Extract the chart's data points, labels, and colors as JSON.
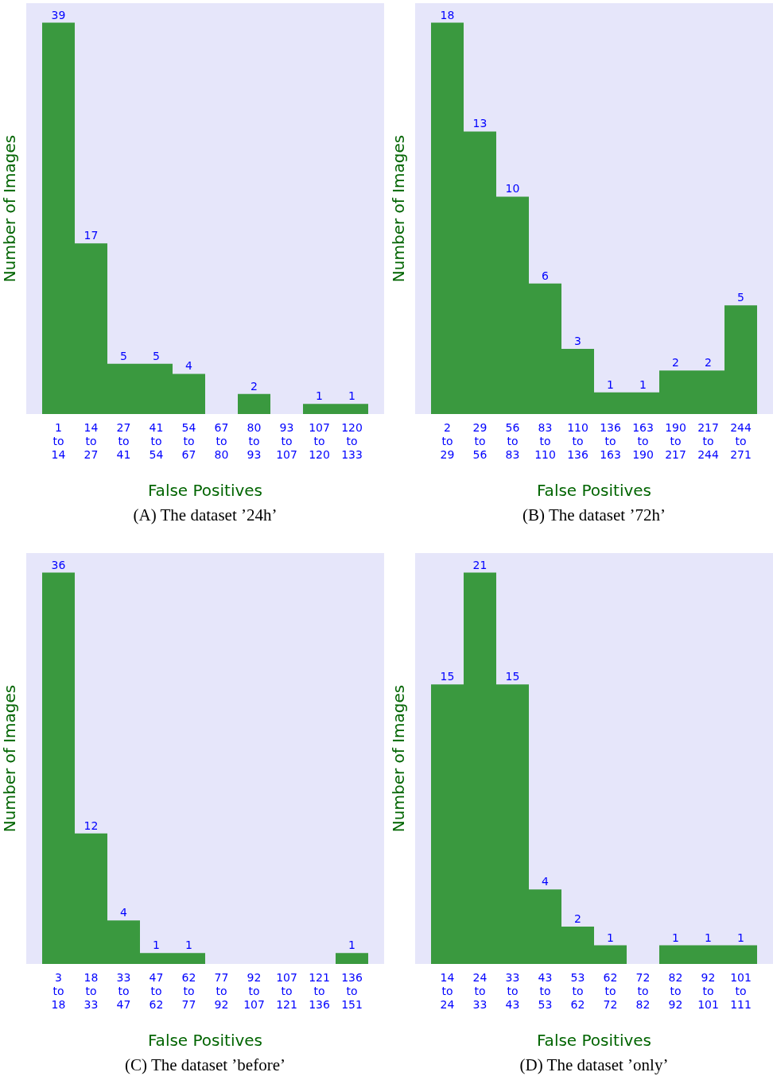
{
  "chart_data": [
    {
      "type": "bar",
      "xlabel": "False Positives",
      "ylabel": "Number of Images",
      "color": "#3a993f",
      "categories": [
        "1 to 14",
        "14 to 27",
        "27 to 41",
        "41 to 54",
        "54 to 67",
        "67 to 80",
        "80 to 93",
        "93 to 107",
        "107 to 120",
        "120 to 133"
      ],
      "values": [
        39,
        17,
        5,
        5,
        4,
        0,
        2,
        0,
        1,
        1
      ],
      "value_labels": [
        "39",
        "17",
        "5",
        "5",
        "4",
        null,
        "2",
        null,
        "1",
        "1"
      ],
      "annotations": [
        "(A) The dataset ’24h’"
      ]
    },
    {
      "type": "bar",
      "xlabel": "False Positives",
      "ylabel": "Number of Images",
      "color": "#3a993f",
      "categories": [
        "2 to 29",
        "29 to 56",
        "56 to 83",
        "83 to 110",
        "110 to 136",
        "136 to 163",
        "163 to 190",
        "190 to 217",
        "217 to 244",
        "244 to 271"
      ],
      "values": [
        18,
        13,
        10,
        6,
        3,
        1,
        1,
        2,
        2,
        5
      ],
      "value_labels": [
        "18",
        "13",
        "10",
        "6",
        "3",
        "1",
        "1",
        "2",
        "2",
        "5"
      ],
      "annotations": [
        "(B) The dataset ’72h’"
      ]
    },
    {
      "type": "bar",
      "xlabel": "False Positives",
      "ylabel": "Number of Images",
      "color": "#3a993f",
      "categories": [
        "3 to 18",
        "18 to 33",
        "33 to 47",
        "47 to 62",
        "62 to 77",
        "77 to 92",
        "92 to 107",
        "107 to 121",
        "121 to 136",
        "136 to 151"
      ],
      "values": [
        36,
        12,
        4,
        1,
        1,
        0,
        0,
        0,
        0,
        1
      ],
      "value_labels": [
        "36",
        "12",
        "4",
        "1",
        "1",
        null,
        null,
        null,
        null,
        "1"
      ],
      "annotations": [
        "(C) The dataset ’before’"
      ]
    },
    {
      "type": "bar",
      "xlabel": "False Positives",
      "ylabel": "Number of Images",
      "color": "#3a993f",
      "categories": [
        "14 to 24",
        "24 to 33",
        "33 to 43",
        "43 to 53",
        "53 to 62",
        "62 to 72",
        "72 to 82",
        "82 to 92",
        "92 to 101",
        "101 to 111"
      ],
      "values": [
        15,
        21,
        15,
        4,
        2,
        1,
        0,
        1,
        1,
        1
      ],
      "value_labels": [
        "15",
        "21",
        "15",
        "4",
        "2",
        "1",
        null,
        "1",
        "1",
        "1"
      ],
      "annotations": [
        "(D) The dataset ’only’"
      ]
    }
  ]
}
